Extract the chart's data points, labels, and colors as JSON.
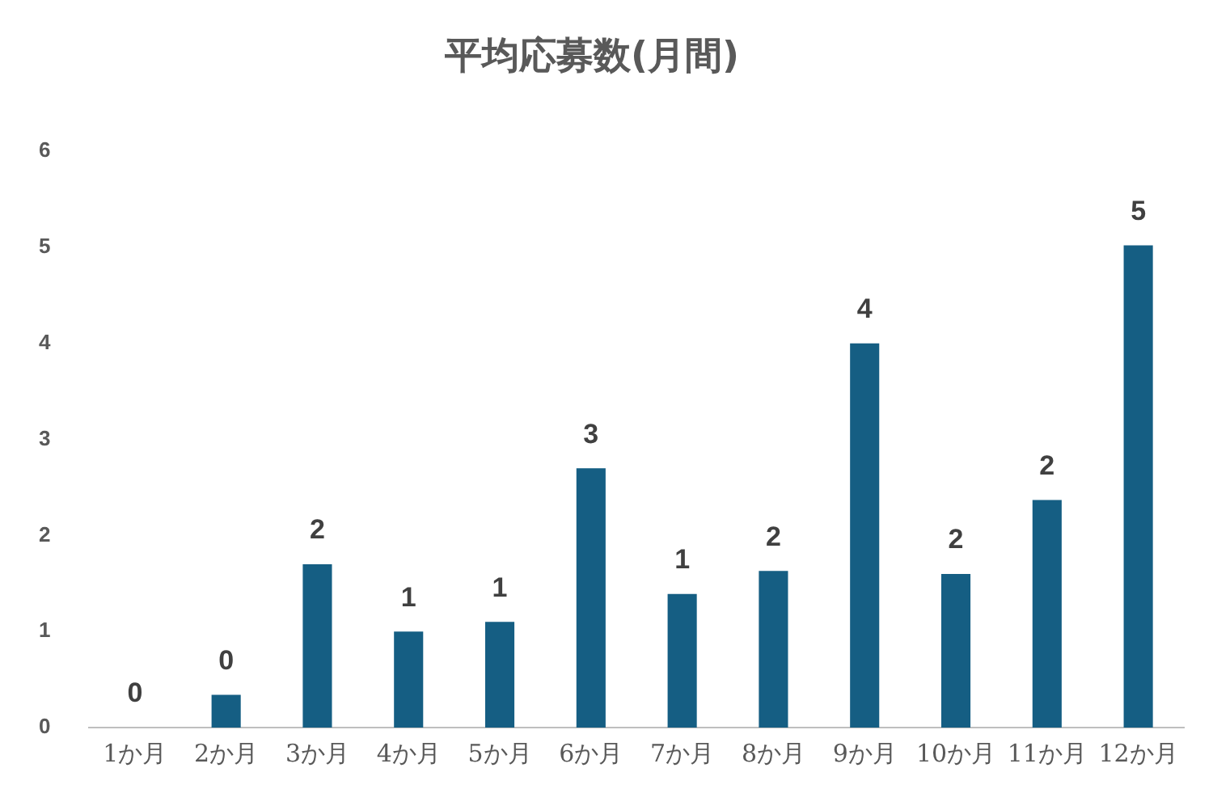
{
  "chart_data": {
    "type": "bar",
    "title": "平均応募数(月間)",
    "categories": [
      "1か月",
      "2か月",
      "3か月",
      "4か月",
      "5か月",
      "6か月",
      "7か月",
      "8か月",
      "9か月",
      "10か月",
      "11か月",
      "12か月"
    ],
    "values": [
      0,
      0.34,
      1.7,
      1.0,
      1.1,
      2.7,
      1.39,
      1.63,
      4.0,
      1.6,
      2.37,
      5.02
    ],
    "value_labels": [
      "0",
      "0",
      "2",
      "1",
      "1",
      "3",
      "1",
      "2",
      "4",
      "2",
      "2",
      "5"
    ],
    "color": "#155e83",
    "ylim": [
      0,
      6
    ],
    "yticks": [
      0,
      1,
      2,
      3,
      4,
      5,
      6
    ],
    "grid": false,
    "legend": false
  }
}
